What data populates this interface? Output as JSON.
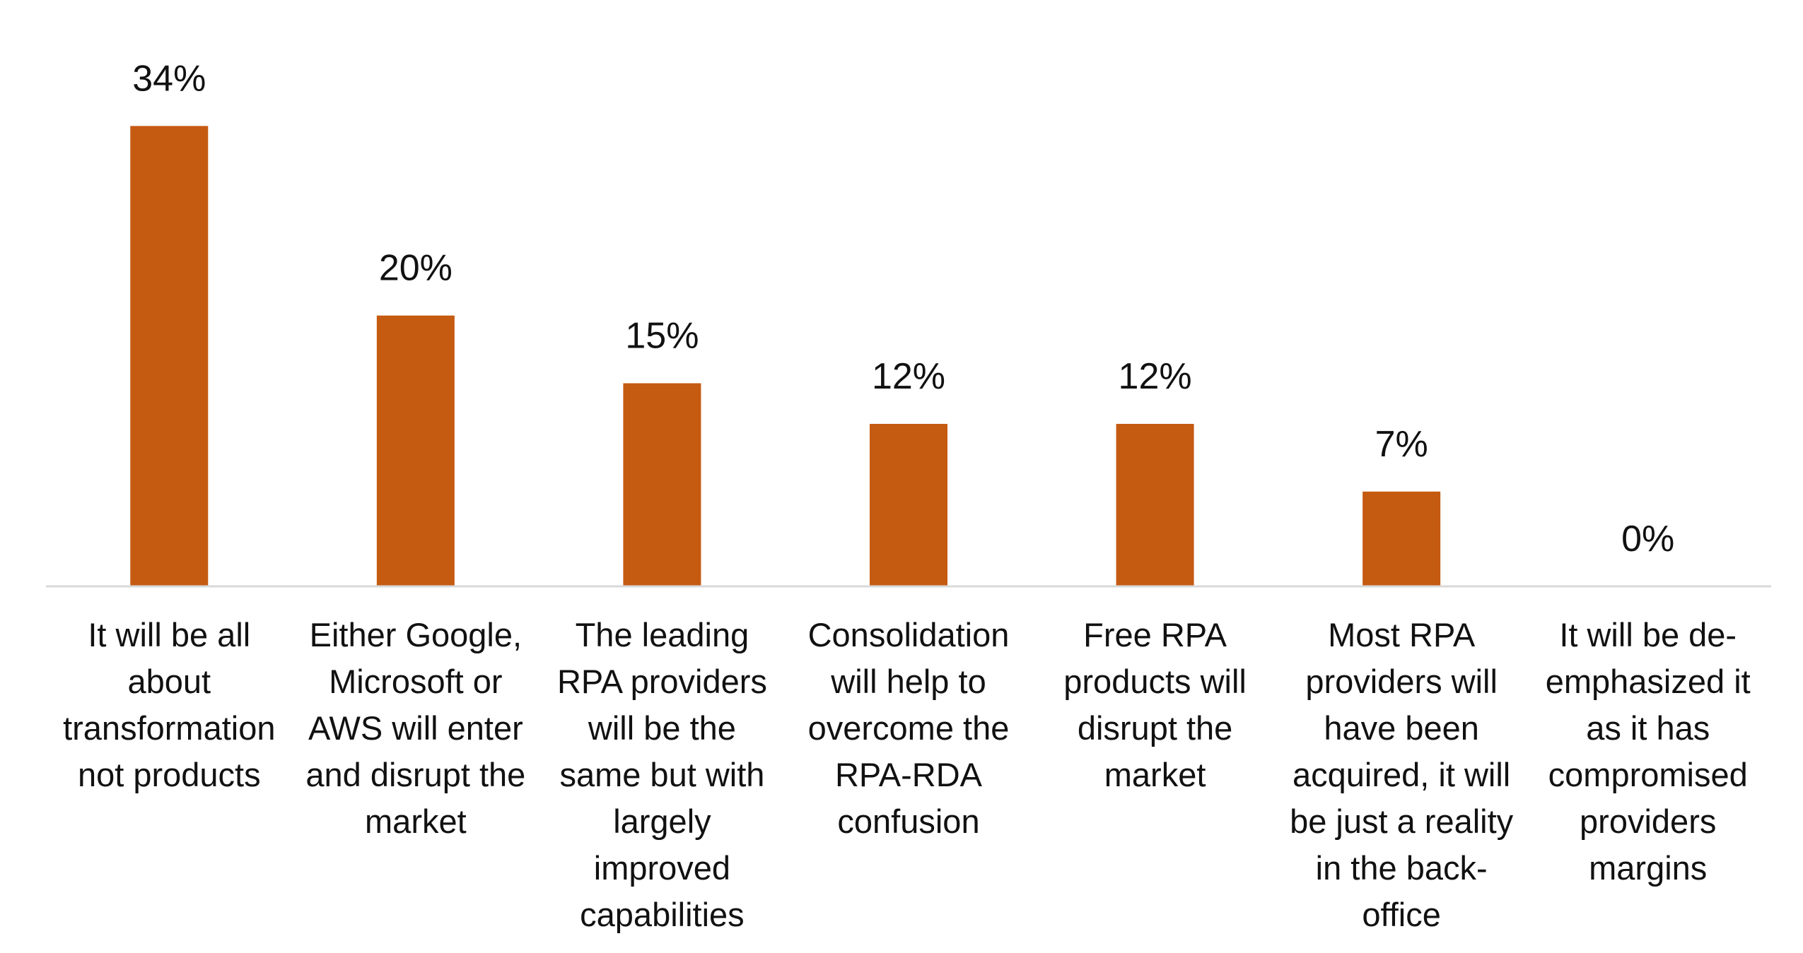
{
  "chart_data": {
    "type": "bar",
    "title": "",
    "xlabel": "",
    "ylabel": "",
    "ylim": [
      0,
      36
    ],
    "grid": false,
    "legend": "none",
    "bar_color": "#C55A11",
    "axis_color": "#D9D9D9",
    "value_suffix": "%",
    "categories": [
      [
        "It will be all",
        "about",
        "transformation",
        "not products"
      ],
      [
        "Either Google,",
        "Microsoft or",
        "AWS will enter",
        "and disrupt the",
        "market"
      ],
      [
        "The leading",
        "RPA providers",
        "will be the",
        "same but with",
        "largely",
        "improved",
        "capabilities"
      ],
      [
        "Consolidation",
        "will help to",
        "overcome the",
        "RPA-RDA",
        "confusion"
      ],
      [
        "Free RPA",
        "products will",
        "disrupt the",
        "market"
      ],
      [
        "Most RPA",
        "providers will",
        "have been",
        "acquired, it will",
        "be just a reality",
        "in the back-",
        "office"
      ],
      [
        "It will be de-",
        "emphasized it",
        "as it has",
        "compromised",
        "providers",
        "margins"
      ]
    ],
    "values": [
      34,
      20,
      15,
      12,
      12,
      7,
      0
    ],
    "value_labels": [
      "34%",
      "20%",
      "15%",
      "12%",
      "12%",
      "7%",
      "0%"
    ]
  }
}
